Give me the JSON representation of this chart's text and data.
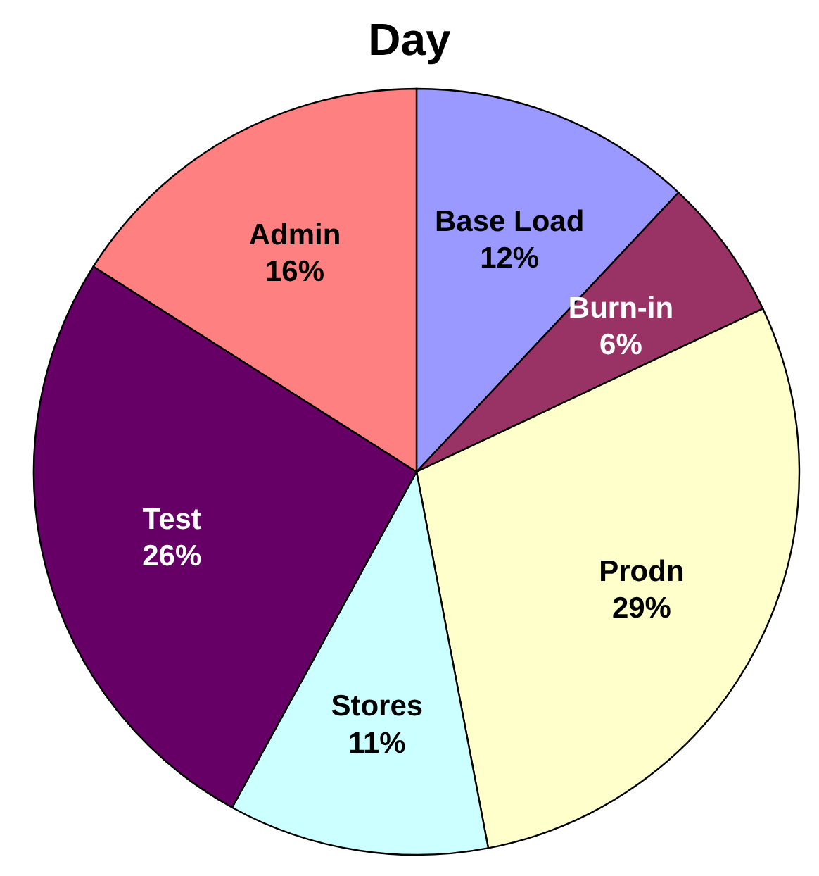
{
  "chart_data": {
    "type": "pie",
    "title": "Day",
    "categories": [
      "Base Load",
      "Burn-in",
      "Prodn",
      "Stores",
      "Test",
      "Admin"
    ],
    "values": [
      12,
      6,
      29,
      11,
      26,
      16
    ],
    "value_labels": [
      "12%",
      "6%",
      "29%",
      "11%",
      "26%",
      "16%"
    ],
    "colors": [
      "#9999ff",
      "#993366",
      "#ffffcc",
      "#ccffff",
      "#660066",
      "#ff8080"
    ],
    "legend": false
  }
}
